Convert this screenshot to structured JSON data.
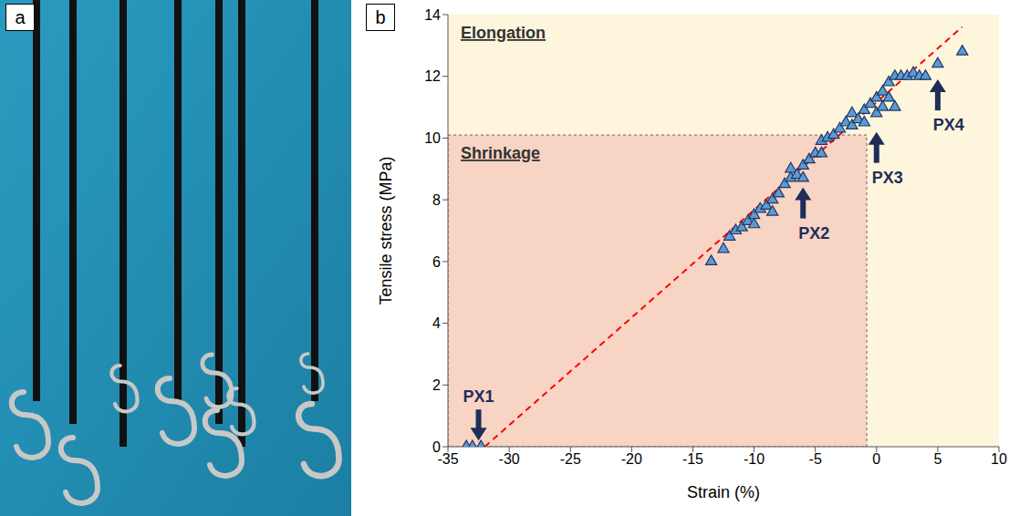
{
  "panel_a": {
    "panel_label": "a"
  },
  "chart_data": {
    "type": "scatter",
    "panel_label": "b",
    "x_label": "Strain (%)",
    "y_label": "Tensile stress (MPa)",
    "xlim": [
      -35,
      10
    ],
    "xticks": [
      -35,
      -30,
      -25,
      -20,
      -15,
      -10,
      -5,
      0,
      5,
      10
    ],
    "ylim": [
      0,
      14
    ],
    "yticks": [
      0,
      2,
      4,
      6,
      8,
      10,
      12,
      14
    ],
    "grid": false,
    "marker": "triangle",
    "color": "#5b9bd5",
    "x": [
      -33.5,
      -33,
      -32.3,
      -13.5,
      -12.5,
      -12,
      -11.5,
      -11,
      -10.5,
      -10,
      -10,
      -9.5,
      -9,
      -8.5,
      -8.5,
      -8,
      -7.5,
      -7,
      -7,
      -6.5,
      -6,
      -6,
      -5.5,
      -5,
      -4.5,
      -4.5,
      -4,
      -3.5,
      -3,
      -2.5,
      -2,
      -2,
      -1.5,
      -1,
      -1,
      -0.5,
      0,
      0,
      0.5,
      0.5,
      1,
      1,
      1.5,
      1.5,
      2,
      2.5,
      3,
      3.5,
      4,
      5,
      7
    ],
    "values": [
      0,
      0,
      0,
      6.0,
      6.4,
      6.8,
      7.0,
      7.1,
      7.3,
      7.2,
      7.5,
      7.7,
      7.8,
      7.6,
      8.0,
      8.2,
      8.5,
      8.7,
      9.0,
      8.8,
      8.7,
      9.1,
      9.3,
      9.5,
      9.5,
      9.9,
      10.0,
      10.1,
      10.3,
      10.5,
      10.4,
      10.8,
      10.6,
      10.9,
      10.5,
      11.1,
      10.8,
      11.3,
      11.0,
      11.5,
      11.3,
      11.8,
      12.0,
      11.0,
      12.0,
      12.0,
      12.1,
      12.0,
      12.0,
      12.4,
      12.8
    ],
    "fit_line": {
      "x": [
        -32,
        7
      ],
      "y": [
        0,
        13.6
      ],
      "color": "#ff0000",
      "line_style": "dashed"
    },
    "regions": [
      {
        "label": "Elongation",
        "x": [
          -35,
          10
        ],
        "y": [
          0,
          14
        ],
        "color": "#fdf6dc"
      },
      {
        "label": "Shrinkage",
        "x": [
          -35,
          -0.8
        ],
        "y": [
          0,
          10.1
        ],
        "color": "#f8d4c4"
      }
    ],
    "annotations": [
      {
        "text": "PX1",
        "x": -32.5,
        "y": 0.2,
        "direction": "down"
      },
      {
        "text": "PX2",
        "x": -6,
        "y": 8.4,
        "direction": "up"
      },
      {
        "text": "PX3",
        "x": 0,
        "y": 10.2,
        "direction": "up"
      },
      {
        "text": "PX4",
        "x": 5,
        "y": 11.9,
        "direction": "up"
      }
    ]
  }
}
